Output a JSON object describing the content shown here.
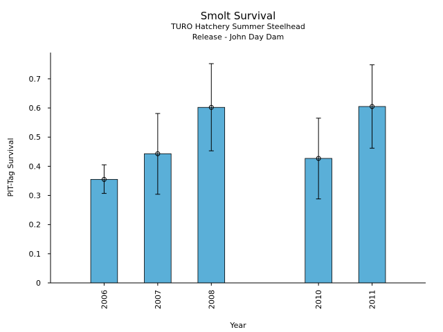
{
  "chart_data": {
    "type": "bar",
    "title": "Smolt Survival",
    "subtitle_lines": [
      "TURO Hatchery Summer Steelhead",
      "Release - John Day Dam"
    ],
    "xlabel": "Year",
    "ylabel": "PIT-Tag Survival",
    "x": [
      2006,
      2007,
      2008,
      2010,
      2011
    ],
    "categories": [
      "2006",
      "2007",
      "2008",
      "2010",
      "2011"
    ],
    "values": [
      0.355,
      0.443,
      0.602,
      0.427,
      0.605
    ],
    "error_lower": [
      0.307,
      0.304,
      0.453,
      0.288,
      0.462
    ],
    "error_upper": [
      0.405,
      0.581,
      0.752,
      0.565,
      0.748
    ],
    "xlim": [
      2005.0,
      2012.0
    ],
    "ylim": [
      0,
      0.79
    ],
    "yticks": [
      0,
      0.1,
      0.2,
      0.3,
      0.4,
      0.5,
      0.6,
      0.7
    ],
    "ytick_labels": [
      "0",
      "0.1",
      "0.2",
      "0.3",
      "0.4",
      "0.5",
      "0.6",
      "0.7"
    ],
    "bar_width": 0.5,
    "bar_color": "#5aafd8",
    "edge_color": "#000000",
    "grid": false,
    "legend": "none"
  }
}
